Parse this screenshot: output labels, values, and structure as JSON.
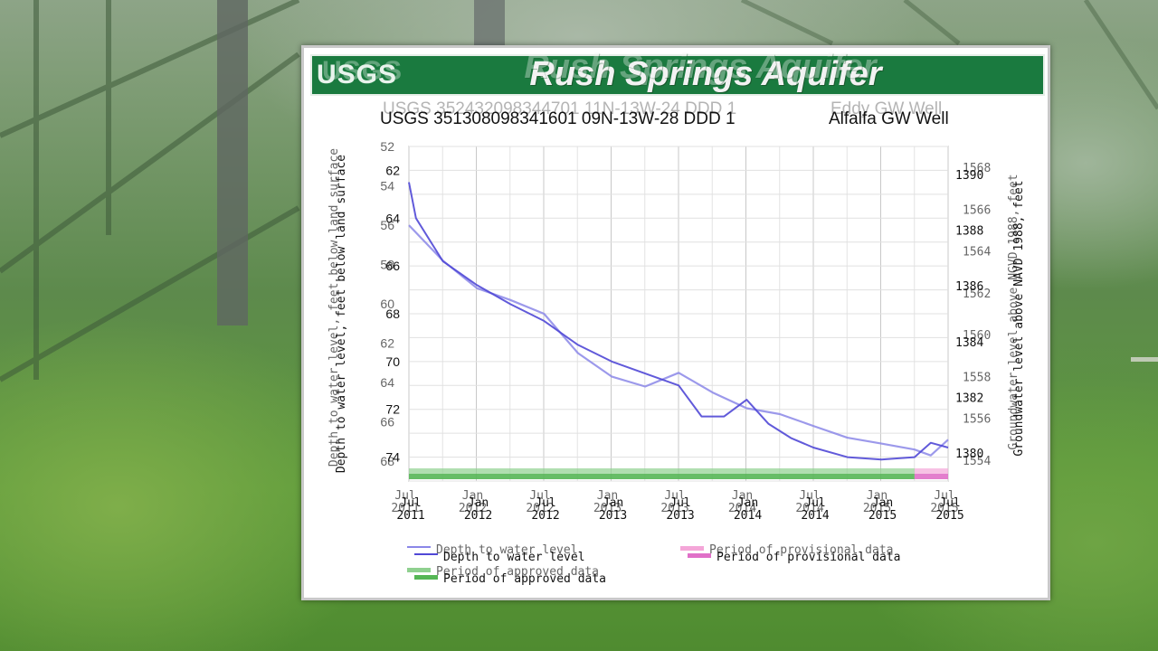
{
  "banner": {
    "logo": "USGS",
    "title": "Rush Springs Aquifer"
  },
  "sites": [
    {
      "label": "USGS 352432098344701 11N-13W-24 DDD 1",
      "name": "Eddy GW Well"
    },
    {
      "label": "USGS 351308098341601 09N-13W-28 DDD 1",
      "name": "Alfalfa GW Well"
    }
  ],
  "chart_data": [
    {
      "type": "line",
      "ylabel": "Depth to water level, feet below land surface",
      "y2label": "Groundwater level above NGVD 1988, feet",
      "ylim": [
        52,
        69
      ],
      "y_ticks": [
        52,
        54,
        56,
        58,
        60,
        62,
        64,
        66,
        68
      ],
      "y2lim": [
        1553,
        1569
      ],
      "y2_ticks": [
        1554,
        1556,
        1558,
        1560,
        1562,
        1564,
        1566,
        1568
      ],
      "x_ticks": [
        "Jul 2011",
        "Jan 2012",
        "Jul 2012",
        "Jan 2013",
        "Jul 2013",
        "Jan 2014",
        "Jul 2014",
        "Jan 2015",
        "Jul 2015"
      ],
      "legend": [
        "Depth to water level",
        "Period of provisional data",
        "Period of approved data"
      ],
      "legend_position": "bottom",
      "grid": true,
      "colors": {
        "series": "#8b87e8",
        "approved": "#8fd08f",
        "provisional": "#f4a6d8"
      },
      "series": [
        {
          "x": [
            "2011-07-01",
            "2011-10-01",
            "2012-01-01",
            "2012-04-01",
            "2012-07-01",
            "2012-10-01",
            "2013-01-01",
            "2013-04-01",
            "2013-07-01",
            "2013-10-01",
            "2014-01-01",
            "2014-04-01",
            "2014-07-01",
            "2014-10-01",
            "2015-01-01",
            "2015-04-01",
            "2015-05-15",
            "2015-07-01"
          ],
          "y": [
            56.0,
            57.8,
            59.2,
            59.8,
            60.5,
            62.5,
            63.7,
            64.2,
            63.5,
            64.5,
            65.3,
            65.6,
            66.2,
            66.8,
            67.1,
            67.4,
            67.7,
            66.9
          ]
        }
      ]
    },
    {
      "type": "line",
      "ylabel": "Depth to water level, feet below land surface",
      "y2label": "Groundwater level above NAVD 1988, feet",
      "ylim": [
        61,
        75
      ],
      "y_ticks": [
        62,
        64,
        66,
        68,
        70,
        72,
        74
      ],
      "y2lim": [
        1379,
        1391
      ],
      "y2_ticks": [
        1380,
        1382,
        1384,
        1386,
        1388,
        1390
      ],
      "x_ticks": [
        "Jul 2011",
        "Jan 2012",
        "Jul 2012",
        "Jan 2013",
        "Jul 2013",
        "Jan 2014",
        "Jul 2014",
        "Jan 2015",
        "Jul 2015"
      ],
      "legend": [
        "Depth to water level",
        "Period of provisional data",
        "Period of approved data"
      ],
      "legend_position": "bottom",
      "grid": true,
      "colors": {
        "series": "#5048d6",
        "approved": "#55b655",
        "provisional": "#e070c8"
      },
      "series": [
        {
          "x": [
            "2011-07-01",
            "2011-07-20",
            "2011-10-01",
            "2012-01-01",
            "2012-04-01",
            "2012-07-01",
            "2012-10-01",
            "2013-01-01",
            "2013-04-01",
            "2013-07-01",
            "2013-09-01",
            "2013-11-01",
            "2014-01-01",
            "2014-03-01",
            "2014-05-01",
            "2014-07-01",
            "2014-10-01",
            "2015-01-01",
            "2015-04-01",
            "2015-05-15",
            "2015-07-01"
          ],
          "y": [
            62.5,
            64.0,
            65.8,
            66.8,
            67.6,
            68.3,
            69.3,
            70.0,
            70.5,
            71.0,
            72.3,
            72.3,
            71.6,
            72.6,
            73.2,
            73.6,
            74.0,
            74.1,
            74.0,
            73.4,
            73.6
          ]
        }
      ]
    }
  ]
}
